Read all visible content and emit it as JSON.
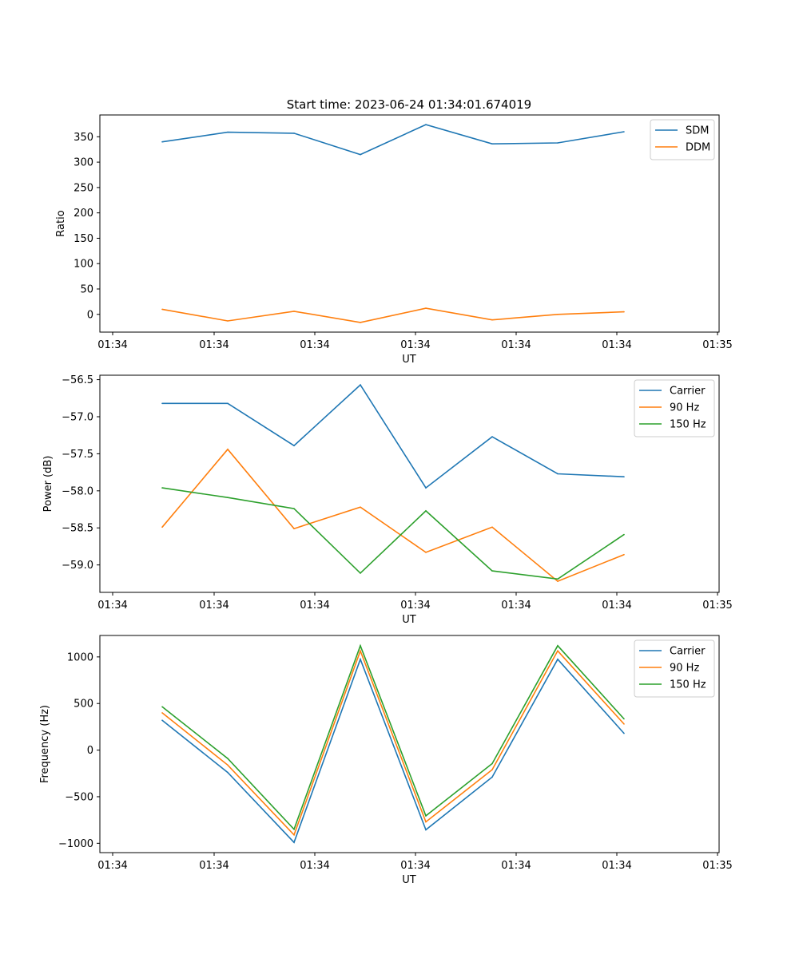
{
  "figure": {
    "title": "Start time: 2023-06-24 01:34:01.674019"
  },
  "chart_data": [
    {
      "type": "line",
      "xlabel": "UT",
      "ylabel": "Ratio",
      "x_tick_labels": [
        "01:34",
        "01:34",
        "01:34",
        "01:34",
        "01:34",
        "01:34",
        "01:34",
        "01:35"
      ],
      "x_index": [
        0,
        1,
        2,
        3,
        4,
        5,
        6,
        7
      ],
      "ylim": [
        -35,
        393
      ],
      "yticks": [
        0,
        50,
        100,
        150,
        200,
        250,
        300,
        350
      ],
      "ytick_labels": [
        "0",
        "50",
        "100",
        "150",
        "200",
        "250",
        "300",
        "350"
      ],
      "legend_position": "upper-right",
      "series": [
        {
          "name": "SDM",
          "color": "#1f77b4",
          "values": [
            340,
            359,
            357,
            315,
            374,
            336,
            338,
            360
          ]
        },
        {
          "name": "DDM",
          "color": "#ff7f0e",
          "values": [
            10,
            -13,
            6,
            -16,
            12,
            -11,
            0,
            5
          ]
        }
      ]
    },
    {
      "type": "line",
      "xlabel": "UT",
      "ylabel": "Power (dB)",
      "x_tick_labels": [
        "01:34",
        "01:34",
        "01:34",
        "01:34",
        "01:34",
        "01:34",
        "01:34",
        "01:35"
      ],
      "x_index": [
        0,
        1,
        2,
        3,
        4,
        5,
        6,
        7
      ],
      "ylim": [
        -59.37,
        -56.44
      ],
      "yticks": [
        -59.0,
        -58.5,
        -58.0,
        -57.5,
        -57.0,
        -56.5
      ],
      "ytick_labels": [
        "−59.0",
        "−58.5",
        "−58.0",
        "−57.5",
        "−57.0",
        "−56.5"
      ],
      "legend_position": "upper-right",
      "series": [
        {
          "name": "Carrier",
          "color": "#1f77b4",
          "values": [
            -56.82,
            -56.82,
            -57.39,
            -56.57,
            -57.96,
            -57.27,
            -57.77,
            -57.81
          ]
        },
        {
          "name": "90 Hz",
          "color": "#ff7f0e",
          "values": [
            -58.49,
            -57.44,
            -58.51,
            -58.22,
            -58.83,
            -58.49,
            -59.22,
            -58.86
          ]
        },
        {
          "name": "150 Hz",
          "color": "#2ca02c",
          "values": [
            -57.96,
            -58.09,
            -58.24,
            -59.11,
            -58.27,
            -59.08,
            -59.19,
            -58.59
          ]
        }
      ]
    },
    {
      "type": "line",
      "xlabel": "UT",
      "ylabel": "Frequency (Hz)",
      "x_tick_labels": [
        "01:34",
        "01:34",
        "01:34",
        "01:34",
        "01:34",
        "01:34",
        "01:34",
        "01:35"
      ],
      "x_index": [
        0,
        1,
        2,
        3,
        4,
        5,
        6,
        7
      ],
      "ylim": [
        -1100,
        1230
      ],
      "yticks": [
        -1000,
        -500,
        0,
        500,
        1000
      ],
      "ytick_labels": [
        "−1000",
        "−500",
        "0",
        "500",
        "1000"
      ],
      "legend_position": "upper-right",
      "series": [
        {
          "name": "Carrier",
          "color": "#1f77b4",
          "values": [
            320,
            -240,
            -990,
            975,
            -855,
            -290,
            975,
            180
          ]
        },
        {
          "name": "90 Hz",
          "color": "#ff7f0e",
          "values": [
            400,
            -160,
            -910,
            1065,
            -770,
            -210,
            1065,
            280
          ]
        },
        {
          "name": "150 Hz",
          "color": "#2ca02c",
          "values": [
            465,
            -90,
            -850,
            1120,
            -705,
            -145,
            1120,
            335
          ]
        }
      ]
    }
  ]
}
